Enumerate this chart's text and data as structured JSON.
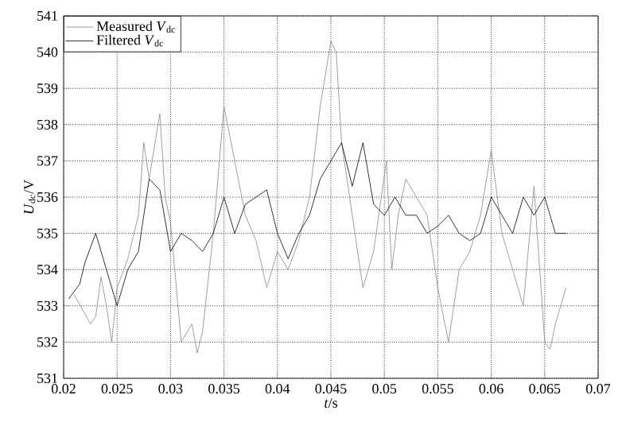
{
  "chart_data": {
    "type": "line",
    "xlabel": "*t*/s",
    "ylabel": "*U*$_{dc}$/V",
    "xlim": [
      0.02,
      0.07
    ],
    "ylim": [
      531,
      541
    ],
    "xticks": [
      0.02,
      0.025,
      0.03,
      0.035,
      0.04,
      0.045,
      0.05,
      0.055,
      0.06,
      0.065,
      0.07
    ],
    "yticks": [
      531,
      532,
      533,
      534,
      535,
      536,
      537,
      538,
      539,
      540,
      541
    ],
    "grid": true,
    "legend": "top left",
    "marker": "none",
    "line_style": "solid",
    "series": [
      {
        "name": "Measured *V*$_{dc}$",
        "color": "#888888",
        "x": [
          0.021,
          0.0225,
          0.023,
          0.0235,
          0.024,
          0.0245,
          0.025,
          0.026,
          0.027,
          0.0275,
          0.028,
          0.029,
          0.0295,
          0.03,
          0.031,
          0.032,
          0.0325,
          0.033,
          0.034,
          0.035,
          0.036,
          0.037,
          0.038,
          0.039,
          0.04,
          0.041,
          0.042,
          0.043,
          0.044,
          0.045,
          0.0455,
          0.046,
          0.047,
          0.048,
          0.049,
          0.0502,
          0.0507,
          0.0513,
          0.052,
          0.053,
          0.054,
          0.055,
          0.056,
          0.057,
          0.058,
          0.059,
          0.06,
          0.061,
          0.062,
          0.063,
          0.064,
          0.065,
          0.0655,
          0.066,
          0.067
        ],
        "values": [
          533.3,
          532.5,
          532.7,
          533.8,
          533.0,
          532.0,
          533.5,
          534.3,
          535.5,
          537.5,
          536.5,
          538.3,
          536.0,
          535.3,
          532.0,
          532.5,
          531.7,
          532.3,
          535.0,
          538.5,
          537.0,
          535.5,
          534.8,
          533.5,
          534.5,
          534.0,
          534.8,
          536.0,
          538.5,
          540.3,
          540.0,
          537.5,
          535.5,
          533.5,
          534.5,
          537.0,
          534.0,
          535.5,
          536.5,
          536.0,
          535.5,
          533.5,
          532.0,
          534.0,
          534.5,
          535.5,
          537.3,
          535.0,
          534.0,
          533.0,
          536.3,
          532.0,
          531.8,
          532.5,
          533.5
        ]
      },
      {
        "name": "Filtered *V*$_{dc}$",
        "color": "#000000",
        "x": [
          0.0205,
          0.0215,
          0.022,
          0.023,
          0.024,
          0.025,
          0.026,
          0.027,
          0.028,
          0.029,
          0.03,
          0.031,
          0.032,
          0.033,
          0.034,
          0.035,
          0.036,
          0.037,
          0.038,
          0.039,
          0.04,
          0.041,
          0.042,
          0.043,
          0.044,
          0.045,
          0.046,
          0.047,
          0.048,
          0.049,
          0.05,
          0.051,
          0.052,
          0.053,
          0.054,
          0.055,
          0.056,
          0.057,
          0.058,
          0.059,
          0.06,
          0.061,
          0.062,
          0.063,
          0.064,
          0.065,
          0.066,
          0.067
        ],
        "values": [
          533.2,
          533.6,
          534.2,
          535.0,
          534.0,
          533.0,
          534.0,
          534.5,
          536.5,
          536.2,
          534.5,
          535.0,
          534.8,
          534.5,
          535.0,
          536.0,
          535.0,
          535.8,
          536.0,
          536.2,
          535.0,
          534.3,
          535.0,
          535.5,
          536.5,
          537.0,
          537.5,
          536.3,
          537.5,
          535.8,
          535.5,
          536.0,
          535.5,
          535.5,
          535.0,
          535.2,
          535.5,
          535.0,
          534.8,
          535.0,
          536.0,
          535.5,
          535.0,
          536.0,
          535.5,
          536.0,
          535.0,
          535.0
        ]
      }
    ]
  }
}
